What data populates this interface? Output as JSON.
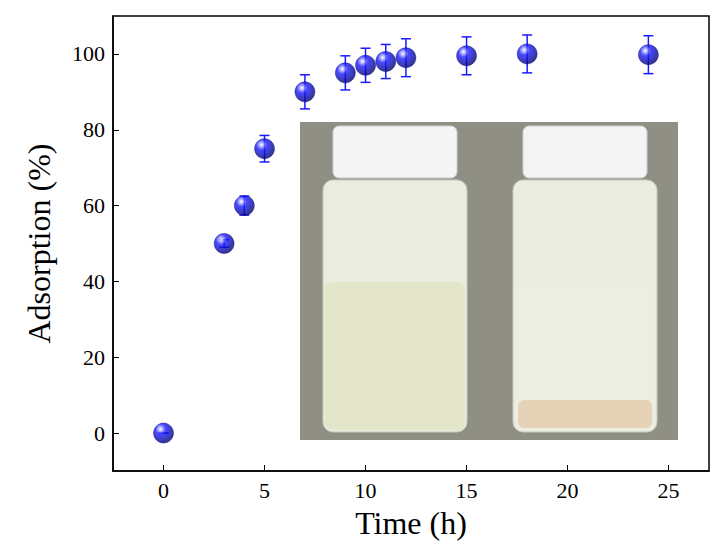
{
  "chart_data": {
    "type": "scatter",
    "x_label": "Time (h)",
    "y_label": "Adsorption (%)",
    "x": [
      0,
      3,
      4,
      5,
      7,
      9,
      10,
      11,
      12,
      15,
      18,
      24
    ],
    "values": [
      0,
      50,
      60,
      75,
      90,
      95,
      97,
      98,
      99,
      99.5,
      100,
      99.8
    ],
    "error": [
      0,
      1,
      2.5,
      3.5,
      4.5,
      4.5,
      4.5,
      4.5,
      5,
      5,
      5,
      5
    ],
    "color": "#1a1aff",
    "marker": "circle",
    "xlim": [
      -2.5,
      27
    ],
    "xticks": [
      0,
      5,
      10,
      15,
      20,
      25
    ],
    "ylim": [
      -10,
      110
    ],
    "yticks": [
      0,
      20,
      40,
      60,
      80,
      100
    ],
    "grid": false
  }
}
